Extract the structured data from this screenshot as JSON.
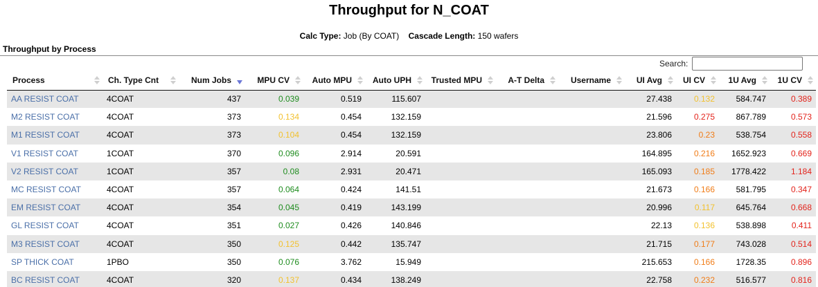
{
  "page": {
    "title": "Throughput for N_COAT",
    "calc_type_label": "Calc Type:",
    "calc_type_value": "Job (By COAT)",
    "cascade_label": "Cascade Length:",
    "cascade_value": "150 wafers",
    "section_title": "Throughput by Process"
  },
  "search": {
    "label": "Search:",
    "value": "",
    "placeholder": ""
  },
  "colors": {
    "good": "#1e8c1e",
    "warn": "#f2c12e",
    "mid": "#f07c17",
    "bad": "#e3231b",
    "link": "#4a6fa8",
    "sort_active": "#6b77d6"
  },
  "table": {
    "columns": [
      {
        "key": "process",
        "label": "Process",
        "align": "left"
      },
      {
        "key": "ch_type_cnt",
        "label": "Ch. Type Cnt",
        "align": "left"
      },
      {
        "key": "num_jobs",
        "label": "Num Jobs",
        "align": "right",
        "sorted": "desc"
      },
      {
        "key": "mpu_cv",
        "label": "MPU CV",
        "align": "right"
      },
      {
        "key": "auto_mpu",
        "label": "Auto MPU",
        "align": "right"
      },
      {
        "key": "auto_uph",
        "label": "Auto UPH",
        "align": "right"
      },
      {
        "key": "trusted_mpu",
        "label": "Trusted MPU",
        "align": "right"
      },
      {
        "key": "at_delta",
        "label": "A-T Delta",
        "align": "right"
      },
      {
        "key": "username",
        "label": "Username",
        "align": "right"
      },
      {
        "key": "ui_avg",
        "label": "UI Avg",
        "align": "right"
      },
      {
        "key": "ui_cv",
        "label": "UI CV",
        "align": "right"
      },
      {
        "key": "u1_avg",
        "label": "1U Avg",
        "align": "right"
      },
      {
        "key": "u1_cv",
        "label": "1U CV",
        "align": "right"
      }
    ],
    "rows": [
      {
        "process": "AA RESIST COAT",
        "ch_type_cnt": "4COAT",
        "num_jobs": "437",
        "mpu_cv": "0.039",
        "mpu_cv_status": "good",
        "auto_mpu": "0.519",
        "auto_uph": "115.607",
        "trusted_mpu": "",
        "at_delta": "",
        "username": "",
        "ui_avg": "27.438",
        "ui_cv": "0.132",
        "ui_cv_status": "warn",
        "u1_avg": "584.747",
        "u1_cv": "0.389",
        "u1_cv_status": "bad"
      },
      {
        "process": "M2 RESIST COAT",
        "ch_type_cnt": "4COAT",
        "num_jobs": "373",
        "mpu_cv": "0.134",
        "mpu_cv_status": "warn",
        "auto_mpu": "0.454",
        "auto_uph": "132.159",
        "trusted_mpu": "",
        "at_delta": "",
        "username": "",
        "ui_avg": "21.596",
        "ui_cv": "0.275",
        "ui_cv_status": "bad",
        "u1_avg": "867.789",
        "u1_cv": "0.573",
        "u1_cv_status": "bad"
      },
      {
        "process": "M1 RESIST COAT",
        "ch_type_cnt": "4COAT",
        "num_jobs": "373",
        "mpu_cv": "0.104",
        "mpu_cv_status": "warn",
        "auto_mpu": "0.454",
        "auto_uph": "132.159",
        "trusted_mpu": "",
        "at_delta": "",
        "username": "",
        "ui_avg": "23.806",
        "ui_cv": "0.23",
        "ui_cv_status": "mid",
        "u1_avg": "538.754",
        "u1_cv": "0.558",
        "u1_cv_status": "bad"
      },
      {
        "process": "V1 RESIST COAT",
        "ch_type_cnt": "1COAT",
        "num_jobs": "370",
        "mpu_cv": "0.096",
        "mpu_cv_status": "good",
        "auto_mpu": "2.914",
        "auto_uph": "20.591",
        "trusted_mpu": "",
        "at_delta": "",
        "username": "",
        "ui_avg": "164.895",
        "ui_cv": "0.216",
        "ui_cv_status": "mid",
        "u1_avg": "1652.923",
        "u1_cv": "0.669",
        "u1_cv_status": "bad"
      },
      {
        "process": "V2 RESIST COAT",
        "ch_type_cnt": "1COAT",
        "num_jobs": "357",
        "mpu_cv": "0.08",
        "mpu_cv_status": "good",
        "auto_mpu": "2.931",
        "auto_uph": "20.471",
        "trusted_mpu": "",
        "at_delta": "",
        "username": "",
        "ui_avg": "165.093",
        "ui_cv": "0.185",
        "ui_cv_status": "mid",
        "u1_avg": "1778.422",
        "u1_cv": "1.184",
        "u1_cv_status": "bad"
      },
      {
        "process": "MC RESIST COAT",
        "ch_type_cnt": "4COAT",
        "num_jobs": "357",
        "mpu_cv": "0.064",
        "mpu_cv_status": "good",
        "auto_mpu": "0.424",
        "auto_uph": "141.51",
        "trusted_mpu": "",
        "at_delta": "",
        "username": "",
        "ui_avg": "21.673",
        "ui_cv": "0.166",
        "ui_cv_status": "mid",
        "u1_avg": "581.795",
        "u1_cv": "0.347",
        "u1_cv_status": "bad"
      },
      {
        "process": "EM RESIST COAT",
        "ch_type_cnt": "4COAT",
        "num_jobs": "354",
        "mpu_cv": "0.045",
        "mpu_cv_status": "good",
        "auto_mpu": "0.419",
        "auto_uph": "143.199",
        "trusted_mpu": "",
        "at_delta": "",
        "username": "",
        "ui_avg": "20.996",
        "ui_cv": "0.117",
        "ui_cv_status": "warn",
        "u1_avg": "645.764",
        "u1_cv": "0.668",
        "u1_cv_status": "bad"
      },
      {
        "process": "GL RESIST COAT",
        "ch_type_cnt": "4COAT",
        "num_jobs": "351",
        "mpu_cv": "0.027",
        "mpu_cv_status": "good",
        "auto_mpu": "0.426",
        "auto_uph": "140.846",
        "trusted_mpu": "",
        "at_delta": "",
        "username": "",
        "ui_avg": "22.13",
        "ui_cv": "0.136",
        "ui_cv_status": "warn",
        "u1_avg": "538.898",
        "u1_cv": "0.411",
        "u1_cv_status": "bad"
      },
      {
        "process": "M3 RESIST COAT",
        "ch_type_cnt": "4COAT",
        "num_jobs": "350",
        "mpu_cv": "0.125",
        "mpu_cv_status": "warn",
        "auto_mpu": "0.442",
        "auto_uph": "135.747",
        "trusted_mpu": "",
        "at_delta": "",
        "username": "",
        "ui_avg": "21.715",
        "ui_cv": "0.177",
        "ui_cv_status": "mid",
        "u1_avg": "743.028",
        "u1_cv": "0.514",
        "u1_cv_status": "bad"
      },
      {
        "process": "SP THICK COAT",
        "ch_type_cnt": "1PBO",
        "num_jobs": "350",
        "mpu_cv": "0.076",
        "mpu_cv_status": "good",
        "auto_mpu": "3.762",
        "auto_uph": "15.949",
        "trusted_mpu": "",
        "at_delta": "",
        "username": "",
        "ui_avg": "215.653",
        "ui_cv": "0.166",
        "ui_cv_status": "mid",
        "u1_avg": "1728.35",
        "u1_cv": "0.896",
        "u1_cv_status": "bad"
      },
      {
        "process": "BC RESIST COAT",
        "ch_type_cnt": "4COAT",
        "num_jobs": "320",
        "mpu_cv": "0.137",
        "mpu_cv_status": "warn",
        "auto_mpu": "0.434",
        "auto_uph": "138.249",
        "trusted_mpu": "",
        "at_delta": "",
        "username": "",
        "ui_avg": "22.758",
        "ui_cv": "0.232",
        "ui_cv_status": "mid",
        "u1_avg": "516.577",
        "u1_cv": "0.816",
        "u1_cv_status": "bad"
      }
    ]
  }
}
